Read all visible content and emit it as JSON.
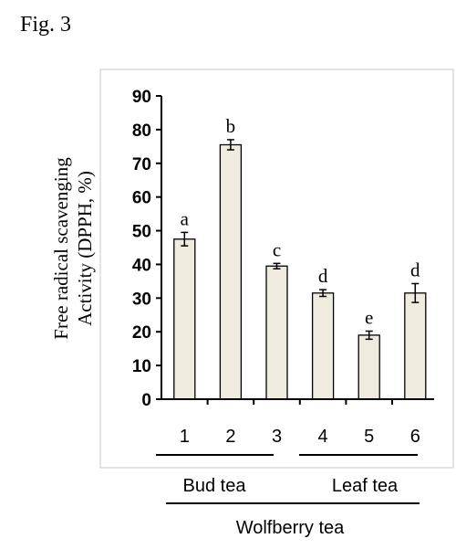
{
  "figure_label": "Fig. 3",
  "chart_data": {
    "type": "bar",
    "categories": [
      "1",
      "2",
      "3",
      "4",
      "5",
      "6"
    ],
    "values": [
      47.5,
      75.5,
      39.5,
      31.5,
      19,
      31.5
    ],
    "errors": [
      2,
      1.5,
      0.8,
      1,
      1.2,
      2.8
    ],
    "significance_letters": [
      "a",
      "b",
      "c",
      "d",
      "e",
      "d"
    ],
    "ylabel_line1": "Free radical scavenging",
    "ylabel_line2": "Activity (DPPH, %)",
    "yticks": [
      "0",
      "10",
      "20",
      "30",
      "40",
      "50",
      "60",
      "70",
      "80",
      "90"
    ],
    "ylim": [
      0,
      90
    ],
    "groups": [
      {
        "label": "Bud tea",
        "categories": [
          "1",
          "2",
          "3"
        ]
      },
      {
        "label": "Leaf tea",
        "categories": [
          "4",
          "5",
          "6"
        ]
      }
    ],
    "supergroup": "Wolfberry tea",
    "bar_color": "#efecdf"
  }
}
